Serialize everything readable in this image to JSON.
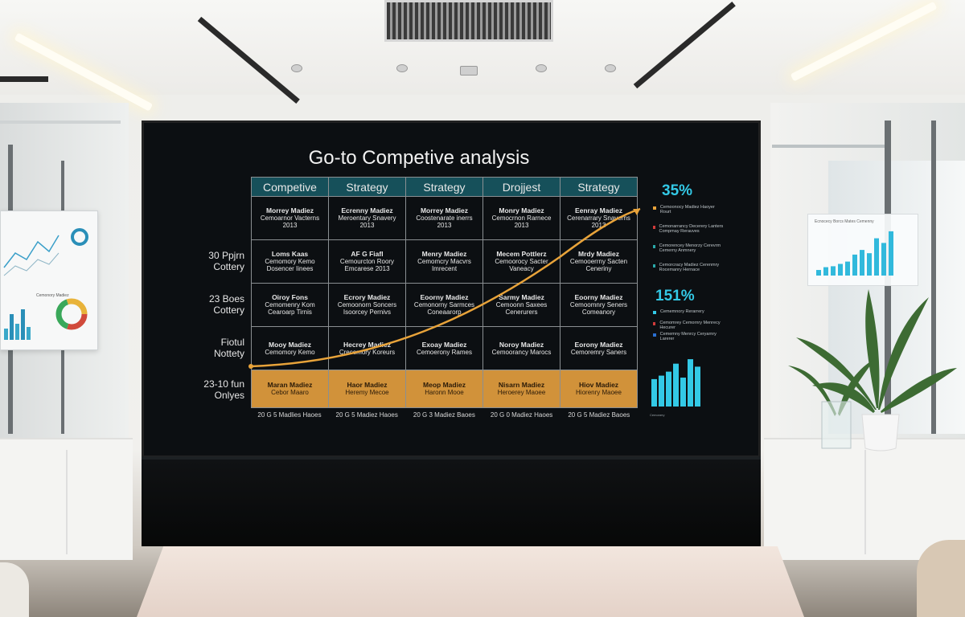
{
  "screen": {
    "title": "Go-to Competive analysis",
    "columns": [
      "Competive",
      "Strategy",
      "Strategy",
      "Drojjest",
      "Strategy"
    ],
    "rows": [
      {
        "label": "",
        "cells": [
          [
            "Morrey Madiez",
            "Cemoarnor Vacterns",
            "2013"
          ],
          [
            "Ecrenny Madiez",
            "Meroentary Snavery",
            "2013"
          ],
          [
            "Morrey Madiez",
            "Coostenarate inerrs",
            "2013"
          ],
          [
            "Monry Madiez",
            "Cemocrnon Rarnece",
            "2013"
          ],
          [
            "Eenray Madiez",
            "Cerenarrary Snaverns",
            "2013"
          ]
        ]
      },
      {
        "label": "30 Ppjrn Cottery",
        "cells": [
          [
            "Loms Kaas",
            "Cemomory Kemo",
            "Dosencer Iinees"
          ],
          [
            "AF G Fiafl",
            "Cemourcton Roory",
            "Emcarese 2013"
          ],
          [
            "Menry Madiez",
            "Cemomcry Macvrs",
            "Imrecent"
          ],
          [
            "Mecem Pottlerz",
            "Cemoorocy Sacter",
            "Vaneacy"
          ],
          [
            "Mrdy Madiez",
            "Cemooerrny Sacten",
            "Ceneriny"
          ]
        ]
      },
      {
        "label": "23 Boes Cottery",
        "cells": [
          [
            "Oiroy Fons",
            "Cemomenry Kom",
            "Cearoarp Tirnis"
          ],
          [
            "Ecrory Madiez",
            "Cemoonorn Soncers",
            "Isoorcey Pernivs"
          ],
          [
            "Eoorny Madiez",
            "Cemonorny Sarmces",
            "Coneaarorp"
          ],
          [
            "Sarmy Madiez",
            "Cemoonn Saxees",
            "Cenerurers"
          ],
          [
            "Eoorny Madiez",
            "Cemoomnry Seners",
            "Comeanory"
          ]
        ]
      },
      {
        "label": "Fiotul Nottety",
        "cells": [
          [
            "Mooy Madiez",
            "Cemomory Kemo"
          ],
          [
            "Hecrey Madiez",
            "Crecemory Koreurs"
          ],
          [
            "Exoay Madiez",
            "Cemoerony Rames"
          ],
          [
            "Noroy Madiez",
            "Cemoorancy Marocs"
          ],
          [
            "Eorony Madiez",
            "Cemoremry Saners"
          ]
        ]
      },
      {
        "label": "23-10 fun Onlyes",
        "highlight": true,
        "cells": [
          [
            "Maran Madiez",
            "Cebor Maaro"
          ],
          [
            "Haor Madiez",
            "Heremy Mecoe"
          ],
          [
            "Meop Madiez",
            "Haronn Mooe"
          ],
          [
            "Nisarn Madiez",
            "Heroerey Maoee"
          ],
          [
            "Hiov Madiez",
            "Hiorenry Maoee"
          ]
        ]
      }
    ],
    "footers": [
      "20 G 5 Madlies Haoes",
      "20 G 5 Madiez Haoes",
      "20 G 3 Madiez Baoes",
      "20 G 0 Madiez Haoes",
      "20 G 5 Madiez Baoes"
    ],
    "stats": {
      "top": "35%",
      "middle": "151%"
    },
    "legend_top": [
      {
        "text": "Cemoonocy Madiez Haoyer Rourt",
        "color": "#e8a33a"
      },
      {
        "text": "Cemonarrancy Decerery Lanters Compmay Rerauves",
        "color": "#d13b3b"
      },
      {
        "text": "Cemorencey Menorzy Cerevrm Cemerny Anmnery",
        "color": "#2aa8a8"
      },
      {
        "text": "Cemorcracy Madiez Cerenmry Rocemanry Hernace",
        "color": "#2aa8a8"
      }
    ],
    "legend_mid": [
      {
        "text": "Cememnory Rerarrery",
        "color": "#33c9e6"
      },
      {
        "text": "Cemomrey Cemornry Menrecy Hecurer",
        "color": "#d13b3b"
      },
      {
        "text": "Cememny Menrcy Ceryarnry Larerer",
        "color": "#2a6fd1"
      }
    ],
    "mini_bars": [
      0.55,
      0.62,
      0.7,
      0.86,
      0.58,
      0.95,
      0.8
    ],
    "mini_bars_caption": "Cemonery",
    "curve_color": "#e8a33a",
    "accent_color": "#33c9e6",
    "highlight_color": "#d1923a",
    "header_color": "#16505a"
  },
  "left_poster": {
    "bars": [
      0.35,
      0.8,
      0.5,
      0.95,
      0.4
    ],
    "caption": "Cemonory Madiez"
  },
  "right_poster": {
    "title": "Ecnocecy Borcs Mates Cemenny",
    "bars": [
      0.12,
      0.18,
      0.2,
      0.25,
      0.3,
      0.45,
      0.55,
      0.48,
      0.8,
      0.7,
      0.95
    ]
  }
}
